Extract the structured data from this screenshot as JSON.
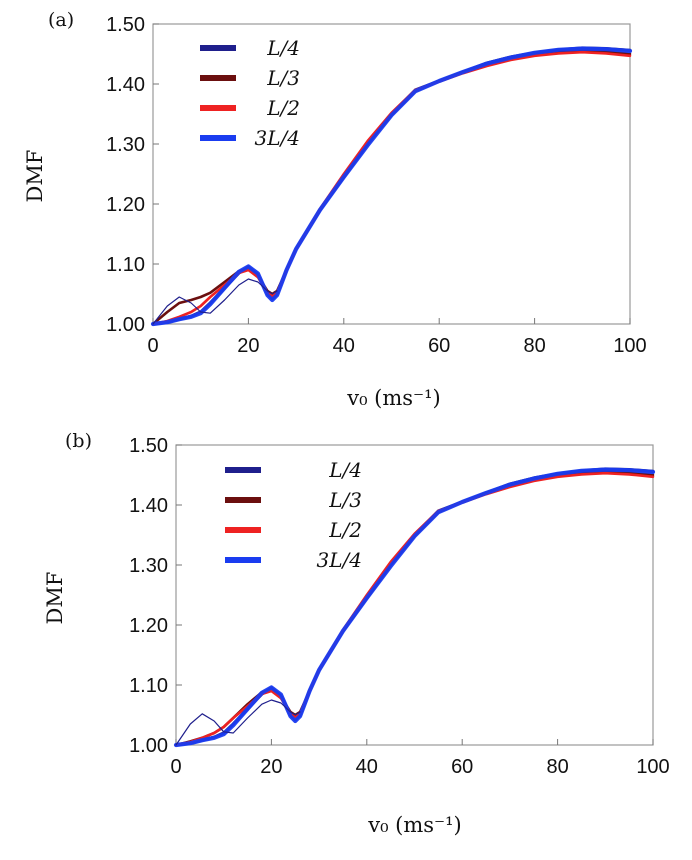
{
  "chart_data": [
    {
      "type": "line",
      "panel_label": "(a)",
      "xlabel": "v₀ (ms⁻¹)",
      "ylabel": "DMF",
      "xlim": [
        0,
        100
      ],
      "ylim": [
        1.0,
        1.5
      ],
      "xticks": [
        "0",
        "20",
        "40",
        "60",
        "80",
        "100"
      ],
      "yticks": [
        "1.00",
        "1.10",
        "1.20",
        "1.30",
        "1.40",
        "1.50"
      ],
      "grid": false,
      "legend_position": "top-left",
      "series": [
        {
          "name": "L/4",
          "color": "#1f1f8c",
          "width": 3.2,
          "x": [
            0,
            3,
            5.5,
            8,
            10,
            12,
            15,
            18,
            20,
            22,
            24,
            25,
            26,
            28,
            30,
            35,
            40,
            45,
            50,
            55,
            60,
            65,
            70,
            75,
            80,
            85,
            90,
            95,
            100
          ],
          "y": [
            1.0,
            1.003,
            1.008,
            1.013,
            1.02,
            1.035,
            1.06,
            1.085,
            1.095,
            1.082,
            1.05,
            1.042,
            1.05,
            1.09,
            1.125,
            1.19,
            1.245,
            1.3,
            1.35,
            1.39,
            1.405,
            1.42,
            1.435,
            1.445,
            1.452,
            1.457,
            1.46,
            1.459,
            1.456
          ]
        },
        {
          "name": "L/3",
          "color": "#6b0f0f",
          "width": 2.6,
          "x": [
            0,
            3,
            5.5,
            8,
            10,
            12,
            15,
            18,
            20,
            22,
            24,
            25,
            26,
            28,
            30,
            35,
            40,
            45,
            50,
            55,
            60,
            65,
            70,
            75,
            80,
            85,
            90,
            95,
            100
          ],
          "y": [
            1.0,
            1.02,
            1.035,
            1.04,
            1.045,
            1.052,
            1.07,
            1.088,
            1.093,
            1.08,
            1.055,
            1.05,
            1.055,
            1.09,
            1.125,
            1.19,
            1.245,
            1.3,
            1.348,
            1.388,
            1.405,
            1.42,
            1.432,
            1.442,
            1.45,
            1.454,
            1.456,
            1.454,
            1.45
          ]
        },
        {
          "name": "L/2",
          "color": "#ee2222",
          "width": 2.6,
          "x": [
            0,
            3,
            5.5,
            8,
            10,
            12,
            15,
            18,
            20,
            22,
            24,
            25,
            26,
            28,
            30,
            35,
            40,
            45,
            50,
            55,
            60,
            65,
            70,
            75,
            80,
            85,
            90,
            95,
            100
          ],
          "y": [
            1.0,
            1.005,
            1.012,
            1.02,
            1.03,
            1.045,
            1.065,
            1.085,
            1.09,
            1.078,
            1.052,
            1.046,
            1.052,
            1.09,
            1.125,
            1.192,
            1.25,
            1.305,
            1.352,
            1.39,
            1.404,
            1.418,
            1.43,
            1.44,
            1.447,
            1.451,
            1.453,
            1.451,
            1.447
          ]
        },
        {
          "name": "3L/4",
          "color": "#1a3cf0",
          "width": 4.2,
          "x": [
            0,
            3,
            5.5,
            8,
            10,
            12,
            15,
            18,
            20,
            22,
            24,
            25,
            26,
            28,
            30,
            35,
            40,
            45,
            50,
            55,
            60,
            65,
            70,
            75,
            80,
            85,
            90,
            95,
            100
          ],
          "y": [
            1.0,
            1.003,
            1.008,
            1.012,
            1.018,
            1.033,
            1.06,
            1.087,
            1.096,
            1.084,
            1.048,
            1.04,
            1.048,
            1.09,
            1.125,
            1.19,
            1.245,
            1.298,
            1.348,
            1.388,
            1.405,
            1.42,
            1.434,
            1.444,
            1.452,
            1.457,
            1.459,
            1.458,
            1.455
          ]
        },
        {
          "name": "",
          "color": "#1f1f8c",
          "width": 1.2,
          "x": [
            0,
            3,
            5.5,
            8,
            10,
            12,
            15,
            18,
            20,
            22,
            24,
            25,
            26
          ],
          "y": [
            1.0,
            1.03,
            1.045,
            1.035,
            1.02,
            1.018,
            1.04,
            1.065,
            1.075,
            1.07,
            1.055,
            1.05,
            1.055
          ]
        }
      ]
    },
    {
      "type": "line",
      "panel_label": "(b)",
      "xlabel": "v₀ (ms⁻¹)",
      "ylabel": "DMF",
      "xlim": [
        0,
        100
      ],
      "ylim": [
        1.0,
        1.5
      ],
      "xticks": [
        "0",
        "20",
        "40",
        "60",
        "80",
        "100"
      ],
      "yticks": [
        "1.00",
        "1.10",
        "1.20",
        "1.30",
        "1.40",
        "1.50"
      ],
      "grid": false,
      "legend_position": "top-left",
      "series": [
        {
          "name": "L/4",
          "color": "#1f1f8c",
          "width": 3.2,
          "x": [
            0,
            3,
            5.5,
            8,
            10,
            12,
            15,
            18,
            20,
            22,
            24,
            25,
            26,
            28,
            30,
            35,
            40,
            45,
            50,
            55,
            60,
            65,
            70,
            75,
            80,
            85,
            90,
            95,
            100
          ],
          "y": [
            1.0,
            1.003,
            1.008,
            1.013,
            1.02,
            1.035,
            1.06,
            1.085,
            1.095,
            1.082,
            1.05,
            1.042,
            1.05,
            1.09,
            1.125,
            1.19,
            1.245,
            1.3,
            1.35,
            1.39,
            1.405,
            1.42,
            1.435,
            1.445,
            1.452,
            1.457,
            1.46,
            1.459,
            1.456
          ]
        },
        {
          "name": "L/3",
          "color": "#6b0f0f",
          "width": 2.6,
          "x": [
            0,
            3,
            5.5,
            8,
            10,
            12,
            15,
            18,
            20,
            22,
            24,
            25,
            26,
            28,
            30,
            35,
            40,
            45,
            50,
            55,
            60,
            65,
            70,
            75,
            80,
            85,
            90,
            95,
            100
          ],
          "y": [
            1.0,
            1.006,
            1.012,
            1.02,
            1.03,
            1.045,
            1.068,
            1.088,
            1.093,
            1.08,
            1.055,
            1.05,
            1.055,
            1.09,
            1.125,
            1.19,
            1.245,
            1.3,
            1.348,
            1.388,
            1.405,
            1.42,
            1.432,
            1.442,
            1.45,
            1.454,
            1.456,
            1.454,
            1.45
          ]
        },
        {
          "name": "L/2",
          "color": "#ee2222",
          "width": 2.6,
          "x": [
            0,
            3,
            5.5,
            8,
            10,
            12,
            15,
            18,
            20,
            22,
            24,
            25,
            26,
            28,
            30,
            35,
            40,
            45,
            50,
            55,
            60,
            65,
            70,
            75,
            80,
            85,
            90,
            95,
            100
          ],
          "y": [
            1.0,
            1.005,
            1.012,
            1.02,
            1.03,
            1.045,
            1.065,
            1.085,
            1.09,
            1.078,
            1.052,
            1.046,
            1.052,
            1.09,
            1.125,
            1.192,
            1.25,
            1.305,
            1.352,
            1.39,
            1.404,
            1.418,
            1.43,
            1.44,
            1.447,
            1.451,
            1.453,
            1.451,
            1.447
          ]
        },
        {
          "name": "3L/4",
          "color": "#1a3cf0",
          "width": 4.2,
          "x": [
            0,
            3,
            5.5,
            8,
            10,
            12,
            15,
            18,
            20,
            22,
            24,
            25,
            26,
            28,
            30,
            35,
            40,
            45,
            50,
            55,
            60,
            65,
            70,
            75,
            80,
            85,
            90,
            95,
            100
          ],
          "y": [
            1.0,
            1.003,
            1.008,
            1.012,
            1.018,
            1.033,
            1.06,
            1.087,
            1.096,
            1.084,
            1.048,
            1.04,
            1.048,
            1.09,
            1.125,
            1.19,
            1.245,
            1.298,
            1.348,
            1.388,
            1.405,
            1.42,
            1.434,
            1.444,
            1.452,
            1.457,
            1.459,
            1.458,
            1.455
          ]
        },
        {
          "name": "",
          "color": "#1f1f8c",
          "width": 1.2,
          "x": [
            0,
            3,
            5.5,
            8,
            10,
            12,
            15,
            18,
            20,
            22,
            24,
            25,
            26
          ],
          "y": [
            1.0,
            1.035,
            1.052,
            1.04,
            1.022,
            1.02,
            1.045,
            1.068,
            1.075,
            1.07,
            1.055,
            1.05,
            1.055
          ]
        }
      ]
    }
  ]
}
